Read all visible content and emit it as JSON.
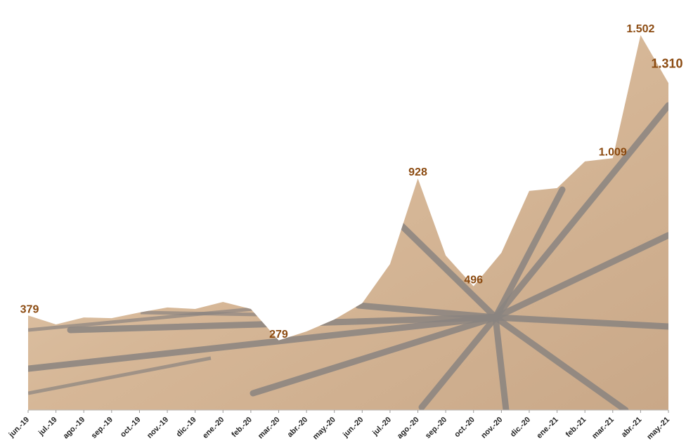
{
  "chart_data": {
    "type": "area",
    "categories": [
      "jun.-19",
      "jul.-19",
      "ago.-19",
      "sep.-19",
      "oct.-19",
      "nov.-19",
      "dic.-19",
      "ene.-20",
      "feb.-20",
      "mar.-20",
      "abr.-20",
      "may.-20",
      "jun.-20",
      "jul.-20",
      "ago.-20",
      "sep.-20",
      "oct.-20",
      "nov.-20",
      "dic.-20",
      "ene.-21",
      "feb.-21",
      "mar.-21",
      "abr.-21",
      "may.-21"
    ],
    "values": [
      379,
      343,
      371,
      368,
      391,
      411,
      405,
      433,
      405,
      279,
      315,
      363,
      428,
      585,
      928,
      619,
      496,
      630,
      878,
      889,
      996,
      1009,
      1502,
      1310
    ],
    "value_labels": [
      "379",
      null,
      null,
      null,
      null,
      null,
      null,
      null,
      null,
      "279",
      null,
      null,
      null,
      null,
      "928",
      null,
      "496",
      null,
      null,
      null,
      null,
      "1.009",
      "1.502",
      "1.310"
    ],
    "color": "#d8bc9b"
  }
}
